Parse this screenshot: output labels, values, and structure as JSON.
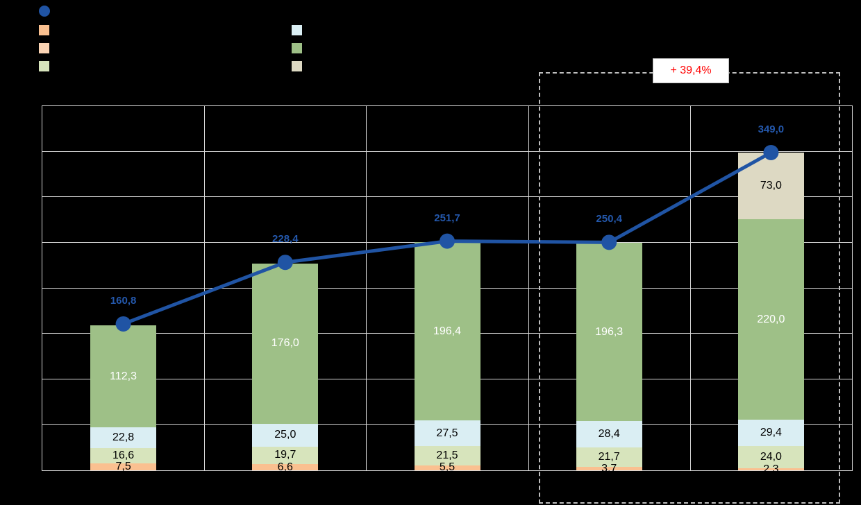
{
  "page": {
    "background": "#000000"
  },
  "legend": {
    "position": "top-left",
    "swatches": {
      "orange": "#FAC090",
      "tan": "#FBD4B4",
      "pale_green": "#D7E4BC",
      "light_blue": "#DAEEF3",
      "green": "#9EC087",
      "beige": "#DDD9C3"
    }
  },
  "annotation": {
    "growth_label": "+ 39,4%",
    "text_color": "#FF0000",
    "box_background": "#FFFFFF",
    "box_border": "#BFBFBF"
  },
  "chart_data": {
    "type": "bar",
    "subtype": "stacked-column-with-line",
    "title": "",
    "xlabel": "",
    "ylabel": "",
    "categories": [
      "",
      "",
      "",
      "",
      ""
    ],
    "ylim": [
      0,
      400
    ],
    "grid_step": 50,
    "grid": true,
    "gridline_color": "#D9D9D9",
    "series": [
      {
        "name": "segment-orange",
        "color": "#FAC090",
        "label_color": "#000000",
        "values": [
          7.5,
          6.6,
          5.5,
          3.7,
          2.3
        ],
        "labels": [
          "7,5",
          "6,6",
          "5,5",
          "3,7",
          "2,3"
        ]
      },
      {
        "name": "segment-pale-green",
        "color": "#D7E4BC",
        "label_color": "#000000",
        "values": [
          16.6,
          19.7,
          21.5,
          21.7,
          24.0
        ],
        "labels": [
          "16,6",
          "19,7",
          "21,5",
          "21,7",
          "24,0"
        ]
      },
      {
        "name": "segment-light-blue",
        "color": "#DAEEF3",
        "label_color": "#000000",
        "values": [
          22.8,
          25.0,
          27.5,
          28.4,
          29.4
        ],
        "labels": [
          "22,8",
          "25,0",
          "27,5",
          "28,4",
          "29,4"
        ]
      },
      {
        "name": "segment-green",
        "color": "#9EC087",
        "label_color": "#FFFFFF",
        "values": [
          112.3,
          176.0,
          196.4,
          196.3,
          220.0
        ],
        "labels": [
          "112,3",
          "176,0",
          "196,4",
          "196,3",
          "220,0"
        ]
      },
      {
        "name": "segment-beige",
        "color": "#DDD9C3",
        "label_color": "#000000",
        "values": [
          0,
          0,
          0,
          0,
          73.0
        ],
        "labels": [
          "",
          "",
          "",
          "",
          "73,0"
        ]
      }
    ],
    "line_series": {
      "name": "total-line",
      "color": "#2054A4",
      "label_color": "#2458AC",
      "values": [
        160.8,
        228.4,
        251.7,
        250.4,
        349.0
      ],
      "labels": [
        "160,8",
        "228,4",
        "251,7",
        "250,4",
        "349,0"
      ]
    },
    "highlight": {
      "covers_last_categories": 2,
      "label": "+ 39,4%"
    }
  }
}
